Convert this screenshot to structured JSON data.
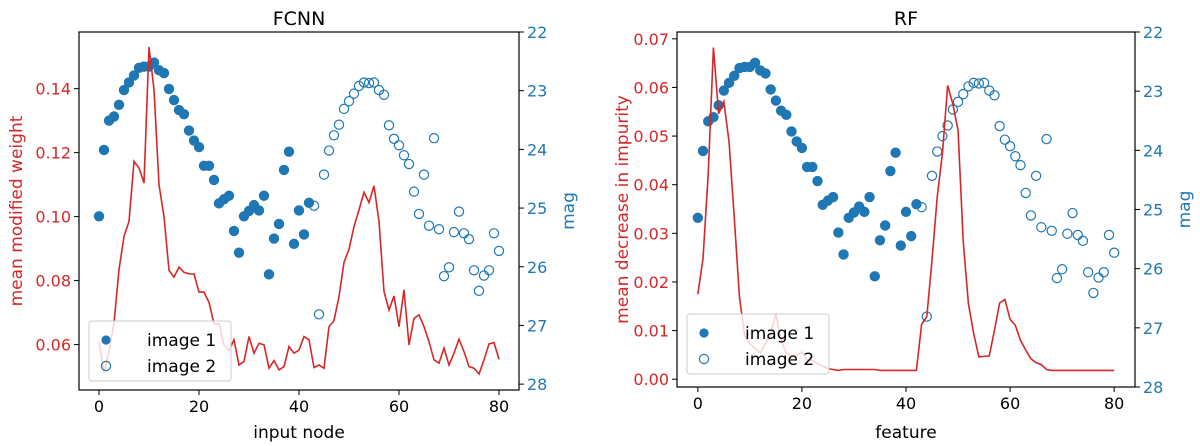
{
  "colors": {
    "weight": "#d62728",
    "mag": "#1f77b4"
  },
  "chart_data": [
    {
      "type": "line+scatter",
      "title": "FCNN",
      "xlabel": "input node",
      "ylabel": "mean modified weight",
      "y2label": "mag",
      "xlim": [
        -4,
        84
      ],
      "ylim": [
        0.0458,
        0.1577
      ],
      "y2lim": [
        28.1,
        22
      ],
      "xticks": [
        0,
        20,
        40,
        60,
        80
      ],
      "yticks": [
        0.06,
        0.08,
        0.1,
        0.12,
        0.14
      ],
      "ytick_labels": [
        "0.06",
        "0.08",
        "0.10",
        "0.12",
        "0.14"
      ],
      "y2ticks": [
        22,
        23,
        24,
        25,
        26,
        27,
        28
      ],
      "legend": {
        "position": "lower-left",
        "entries": [
          "image 1",
          "image 2"
        ]
      },
      "line_values": [
        0.0609,
        0.0512,
        0.058,
        0.0667,
        0.0834,
        0.0938,
        0.0985,
        0.1173,
        0.1152,
        0.1105,
        0.153,
        0.1397,
        0.11,
        0.1,
        0.0832,
        0.0811,
        0.0842,
        0.0826,
        0.0821,
        0.0821,
        0.0764,
        0.0764,
        0.0732,
        0.0665,
        0.0665,
        0.0599,
        0.0581,
        0.0615,
        0.0536,
        0.0547,
        0.0625,
        0.0573,
        0.0604,
        0.0599,
        0.0526,
        0.055,
        0.0521,
        0.0531,
        0.0594,
        0.0573,
        0.0583,
        0.0625,
        0.0615,
        0.0528,
        0.0536,
        0.0526,
        0.0656,
        0.0675,
        0.075,
        0.0857,
        0.0898,
        0.0969,
        0.1021,
        0.1076,
        0.1044,
        0.1096,
        0.0985,
        0.0766,
        0.0708,
        0.0752,
        0.0656,
        0.0771,
        0.0599,
        0.0682,
        0.0693,
        0.0656,
        0.0609,
        0.0552,
        0.0542,
        0.0589,
        0.0536,
        0.0573,
        0.0617,
        0.0578,
        0.0531,
        0.0526,
        0.0508,
        0.0552,
        0.0602,
        0.0606,
        0.0554
      ]
    },
    {
      "type": "line+scatter",
      "title": "RF",
      "xlabel": "feature",
      "ylabel": "mean decrease in impurity",
      "y2label": "mag",
      "xlim": [
        -4,
        84
      ],
      "ylim": [
        -0.0016,
        0.0714
      ],
      "y2lim": [
        28,
        22
      ],
      "xticks": [
        0,
        20,
        40,
        60,
        80
      ],
      "yticks": [
        0.0,
        0.01,
        0.02,
        0.03,
        0.04,
        0.05,
        0.06,
        0.07
      ],
      "ytick_labels": [
        "0.00",
        "0.01",
        "0.02",
        "0.03",
        "0.04",
        "0.05",
        "0.06",
        "0.07"
      ],
      "y2ticks": [
        22,
        23,
        24,
        25,
        26,
        27,
        28
      ],
      "legend": {
        "position": "lower-left",
        "entries": [
          "image 1",
          "image 2"
        ]
      },
      "line_values": [
        0.0175,
        0.0248,
        0.0423,
        0.0682,
        0.0546,
        0.0571,
        0.0488,
        0.0333,
        0.0169,
        0.009,
        0.0073,
        0.0063,
        0.0054,
        0.0073,
        0.0094,
        0.0135,
        0.008,
        0.0053,
        0.0049,
        0.0049,
        0.0056,
        0.0039,
        0.0039,
        0.0032,
        0.0027,
        0.0022,
        0.002,
        0.0018,
        0.002,
        0.002,
        0.002,
        0.002,
        0.002,
        0.002,
        0.002,
        0.0018,
        0.0018,
        0.0018,
        0.0018,
        0.0018,
        0.0018,
        0.0018,
        0.0018,
        0.0113,
        0.0129,
        0.0245,
        0.0375,
        0.0464,
        0.0604,
        0.0566,
        0.0512,
        0.0282,
        0.0155,
        0.0094,
        0.0046,
        0.0047,
        0.0048,
        0.0101,
        0.0157,
        0.0164,
        0.0123,
        0.0111,
        0.008,
        0.006,
        0.0042,
        0.0034,
        0.003,
        0.002,
        0.0018,
        0.0018,
        0.0018,
        0.0018,
        0.0018,
        0.0018,
        0.0018,
        0.0018,
        0.0018,
        0.0018,
        0.0018,
        0.0018,
        0.0018
      ]
    }
  ],
  "mag_series": {
    "image1_x_range": [
      0,
      42
    ],
    "image2_x_range": [
      43,
      80
    ],
    "values": [
      25.14,
      24.01,
      23.51,
      23.44,
      23.24,
      22.99,
      22.86,
      22.74,
      22.61,
      22.59,
      22.59,
      22.52,
      22.65,
      22.7,
      22.97,
      23.16,
      23.33,
      23.4,
      23.68,
      23.85,
      23.96,
      24.28,
      24.28,
      24.52,
      24.92,
      24.85,
      24.79,
      25.39,
      25.76,
      25.14,
      25.05,
      24.95,
      25.04,
      24.79,
      26.13,
      25.52,
      25.27,
      24.35,
      24.04,
      25.61,
      25.04,
      25.45,
      24.91,
      24.96,
      26.81,
      24.43,
      24.02,
      23.76,
      23.58,
      23.31,
      23.18,
      23.05,
      22.92,
      22.86,
      22.87,
      22.86,
      22.99,
      23.07,
      23.59,
      23.82,
      23.93,
      24.1,
      24.25,
      24.72,
      25.1,
      24.43,
      25.3,
      23.81,
      25.36,
      26.16,
      26.01,
      25.41,
      25.06,
      25.43,
      25.53,
      26.06,
      26.41,
      26.15,
      26.06,
      25.43,
      25.73
    ]
  }
}
